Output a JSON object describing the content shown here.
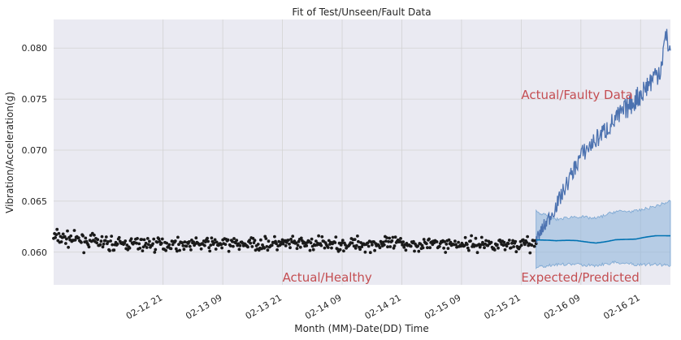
{
  "chart_data": {
    "type": "line",
    "title": "Fit of Test/Unseen/Fault Data",
    "xlabel": "Month (MM)-Date(DD) Time",
    "ylabel": "Vibration/Acceleration(g)",
    "x_range": [
      "2016-02-11 23:00",
      "2016-02-17 03:00"
    ],
    "ylim": [
      0.0568,
      0.0828
    ],
    "grid": true,
    "x_ticks": [
      {
        "at": "2016-02-12 21:00",
        "label": "02-12 21"
      },
      {
        "at": "2016-02-13 09:00",
        "label": "02-13 09"
      },
      {
        "at": "2016-02-13 21:00",
        "label": "02-13 21"
      },
      {
        "at": "2016-02-14 09:00",
        "label": "02-14 09"
      },
      {
        "at": "2016-02-14 21:00",
        "label": "02-14 21"
      },
      {
        "at": "2016-02-15 09:00",
        "label": "02-15 09"
      },
      {
        "at": "2016-02-15 21:00",
        "label": "02-15 21"
      },
      {
        "at": "2016-02-16 09:00",
        "label": "02-16 09"
      },
      {
        "at": "2016-02-16 21:00",
        "label": "02-16 21"
      }
    ],
    "y_ticks": [
      0.06,
      0.065,
      0.07,
      0.075,
      0.08
    ],
    "y_tick_labels": [
      "0.060",
      "0.065",
      "0.070",
      "0.075",
      "0.080"
    ],
    "colors": {
      "healthy_points": "#1a1a1a",
      "faulty_line": "#4c72b0",
      "predicted_line": "#0072b2",
      "predicted_band": "#92b8dc",
      "annotation": "#c44e52",
      "plot_bg": "#eaeaf2",
      "grid": "#d3d3d3"
    },
    "series": [
      {
        "kind": "scatter",
        "x_range": [
          "2016-02-11 23:00",
          "2016-02-16 00:00"
        ],
        "mean": 0.0608,
        "spread": 0.0008,
        "early_level": 0.0615
      },
      {
        "kind": "line",
        "x_range": [
          "2016-02-16 00:00",
          "2016-02-17 03:00"
        ],
        "keypoints": [
          {
            "x": "2016-02-16 00:00",
            "y": 0.0612
          },
          {
            "x": "2016-02-16 04:00",
            "y": 0.0645
          },
          {
            "x": "2016-02-16 09:00",
            "y": 0.0695
          },
          {
            "x": "2016-02-16 16:00",
            "y": 0.073
          },
          {
            "x": "2016-02-16 21:00",
            "y": 0.0755
          },
          {
            "x": "2016-02-17 01:00",
            "y": 0.078
          },
          {
            "x": "2016-02-17 02:00",
            "y": 0.081
          },
          {
            "x": "2016-02-17 03:00",
            "y": 0.08
          }
        ]
      },
      {
        "kind": "line_with_band",
        "keypoints": [
          {
            "x": "2016-02-16 00:00",
            "y": 0.0612,
            "lo": 0.0585,
            "hi": 0.064
          },
          {
            "x": "2016-02-16 04:00",
            "y": 0.061,
            "lo": 0.0588,
            "hi": 0.0632
          },
          {
            "x": "2016-02-16 08:00",
            "y": 0.0611,
            "lo": 0.0588,
            "hi": 0.0635
          },
          {
            "x": "2016-02-16 12:00",
            "y": 0.061,
            "lo": 0.0587,
            "hi": 0.0633
          },
          {
            "x": "2016-02-16 16:00",
            "y": 0.0613,
            "lo": 0.059,
            "hi": 0.064
          },
          {
            "x": "2016-02-16 20:00",
            "y": 0.0612,
            "lo": 0.0588,
            "hi": 0.064
          },
          {
            "x": "2016-02-17 00:00",
            "y": 0.0615,
            "lo": 0.0588,
            "hi": 0.0645
          },
          {
            "x": "2016-02-17 03:00",
            "y": 0.0616,
            "lo": 0.0587,
            "hi": 0.065
          }
        ]
      }
    ],
    "annotations": [
      {
        "text": "Actual/Faulty Data",
        "x": "2016-02-15 21:00",
        "y": 0.075
      },
      {
        "text": "Actual/Healthy",
        "x": "2016-02-13 21:00",
        "y": 0.0571
      },
      {
        "text": "Expected/Predicted",
        "x": "2016-02-15 21:00",
        "y": 0.0571
      }
    ]
  }
}
